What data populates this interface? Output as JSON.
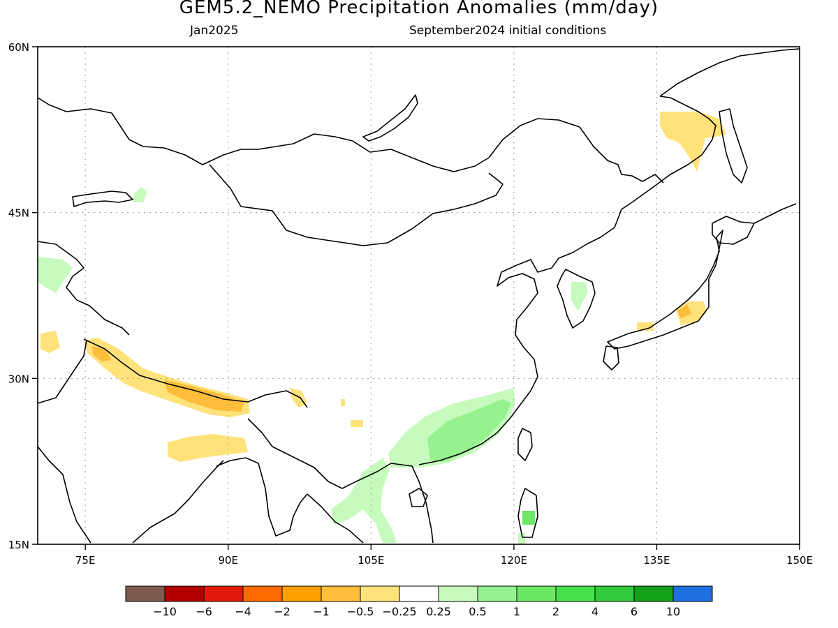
{
  "title": "GEM5.2_NEMO Precipitation Anomalies (mm/day)",
  "subtitle_left": "Jan2025",
  "subtitle_right": "September2024 initial conditions",
  "lat_labels": [
    {
      "value": 60,
      "text": "60N"
    },
    {
      "value": 45,
      "text": "45N"
    },
    {
      "value": 30,
      "text": "30N"
    },
    {
      "value": 15,
      "text": "15N"
    }
  ],
  "lon_labels": [
    {
      "value": 75,
      "text": "75E"
    },
    {
      "value": 90,
      "text": "90E"
    },
    {
      "value": 105,
      "text": "105E"
    },
    {
      "value": 120,
      "text": "120E"
    },
    {
      "value": 135,
      "text": "135E"
    },
    {
      "value": 150,
      "text": "150E"
    }
  ],
  "colorbar": {
    "colors": [
      "#7d5a4b",
      "#b30000",
      "#e01a0a",
      "#ff6a00",
      "#ff9f00",
      "#ffbd3c",
      "#ffe27a",
      "#ffffff",
      "#c6fbbd",
      "#96f28e",
      "#6ce866",
      "#48e04b",
      "#32c93a",
      "#14a11a",
      "#1f6fe0"
    ],
    "ticks": [
      "−10",
      "−6",
      "−4",
      "−2",
      "−1",
      "−0.5",
      "−0.25",
      "0.25",
      "0.5",
      "1",
      "2",
      "4",
      "6",
      "10"
    ]
  },
  "colors": {
    "dry_light": "#ffe27a",
    "dry_mid": "#ffbd3c",
    "wet_light": "#c6fbbd",
    "wet_mid": "#96f28e",
    "wet_strong": "#6ce866"
  }
}
